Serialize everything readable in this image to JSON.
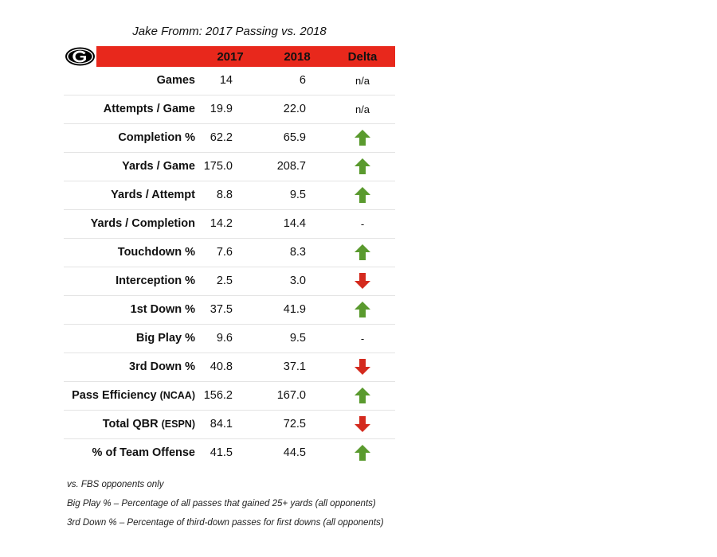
{
  "chart_data": {
    "type": "table",
    "title": "Jake Fromm: 2017 Passing vs. 2018",
    "columns": [
      "2017",
      "2018",
      "Delta"
    ],
    "rows": [
      {
        "label": "Games",
        "qualifier": "",
        "v2017": "14",
        "v2018": "6",
        "delta": "n/a",
        "delta_type": "text"
      },
      {
        "label": "Attempts / Game",
        "qualifier": "",
        "v2017": "19.9",
        "v2018": "22.0",
        "delta": "n/a",
        "delta_type": "text"
      },
      {
        "label": "Completion %",
        "qualifier": "",
        "v2017": "62.2",
        "v2018": "65.9",
        "delta": "",
        "delta_type": "up"
      },
      {
        "label": "Yards / Game",
        "qualifier": "",
        "v2017": "175.0",
        "v2018": "208.7",
        "delta": "",
        "delta_type": "up"
      },
      {
        "label": "Yards / Attempt",
        "qualifier": "",
        "v2017": "8.8",
        "v2018": "9.5",
        "delta": "",
        "delta_type": "up"
      },
      {
        "label": "Yards / Completion",
        "qualifier": "",
        "v2017": "14.2",
        "v2018": "14.4",
        "delta": "-",
        "delta_type": "text"
      },
      {
        "label": "Touchdown %",
        "qualifier": "",
        "v2017": "7.6",
        "v2018": "8.3",
        "delta": "",
        "delta_type": "up"
      },
      {
        "label": "Interception %",
        "qualifier": "",
        "v2017": "2.5",
        "v2018": "3.0",
        "delta": "",
        "delta_type": "down"
      },
      {
        "label": "1st Down %",
        "qualifier": "",
        "v2017": "37.5",
        "v2018": "41.9",
        "delta": "",
        "delta_type": "up"
      },
      {
        "label": "Big Play %",
        "qualifier": "",
        "v2017": "9.6",
        "v2018": "9.5",
        "delta": "-",
        "delta_type": "text"
      },
      {
        "label": "3rd Down %",
        "qualifier": "",
        "v2017": "40.8",
        "v2018": "37.1",
        "delta": "",
        "delta_type": "down"
      },
      {
        "label": "Pass Efficiency",
        "qualifier": "(NCAA)",
        "v2017": "156.2",
        "v2018": "167.0",
        "delta": "",
        "delta_type": "up"
      },
      {
        "label": "Total QBR",
        "qualifier": "(ESPN)",
        "v2017": "84.1",
        "v2018": "72.5",
        "delta": "",
        "delta_type": "down"
      },
      {
        "label": "% of Team Offense",
        "qualifier": "",
        "v2017": "41.5",
        "v2018": "44.5",
        "delta": "",
        "delta_type": "up"
      }
    ],
    "notes": [
      "vs. FBS opponents only",
      "Big Play % – Percentage of all passes that gained 25+ yards (all opponents)",
      "3rd Down % – Percentage of third-down passes for first downs (all opponents)"
    ]
  },
  "logo": {
    "name": "georgia-g-logo",
    "letter": "G"
  },
  "colors": {
    "header_bg": "#e8281c",
    "arrow_up": "#5a9a2e",
    "arrow_down": "#d42a1e",
    "text": "#111111",
    "row_divider": "#e4e4e4"
  },
  "icons": {
    "up": "up-arrow-icon",
    "down": "down-arrow-icon"
  }
}
